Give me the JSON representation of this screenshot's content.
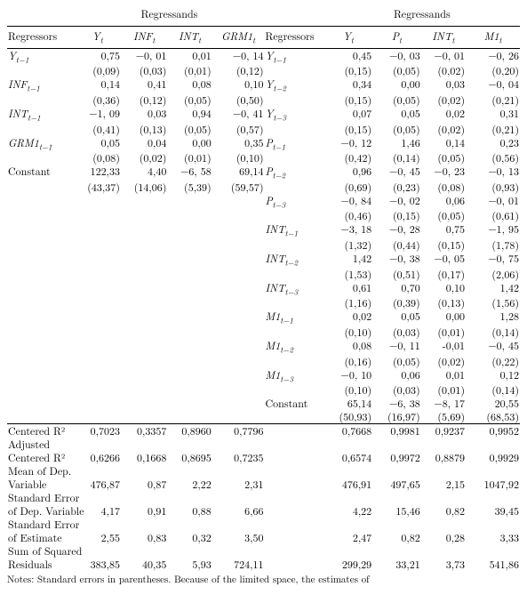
{
  "headings": {
    "regressands": "Regressands",
    "regressors": "Regressors"
  },
  "left": {
    "cols": [
      "Y",
      "INF",
      "INT",
      "GRM1"
    ],
    "cols_sub": [
      "t",
      "t",
      "t",
      "t"
    ],
    "rows": [
      {
        "label": "Y",
        "sub": "t−1",
        "vals": [
          "0,75",
          "−0, 01",
          "0,01",
          "−0, 14"
        ],
        "se": [
          "(0,09)",
          "(0,03)",
          "(0,01)",
          "(0,12)"
        ]
      },
      {
        "label": "INF",
        "sub": "t−1",
        "vals": [
          "0,14",
          "0,41",
          "0,08",
          "0,10"
        ],
        "se": [
          "(0,36)",
          "(0,12)",
          "(0,05)",
          "(0,50)"
        ]
      },
      {
        "label": "INT",
        "sub": "t−1",
        "vals": [
          "−1, 09",
          "0,03",
          "0,94",
          "−0, 41"
        ],
        "se": [
          "(0,41)",
          "(0,13)",
          "(0,05)",
          "(0,57)"
        ]
      },
      {
        "label": "GRM1",
        "sub": "t−1",
        "vals": [
          "0,05",
          "0,04",
          "0,00",
          "0,35"
        ],
        "se": [
          "(0,08)",
          "(0,02)",
          "(0,01)",
          "(0,10)"
        ]
      },
      {
        "label": "Constant",
        "sub": "",
        "vals": [
          "122,33",
          "4,40",
          "−6, 58",
          "69,14"
        ],
        "se": [
          "(43,37)",
          "(14,06)",
          "(5,39)",
          "(59,57)"
        ]
      }
    ]
  },
  "right": {
    "cols": [
      "Y",
      "P",
      "INT",
      "M1"
    ],
    "cols_sub": [
      "t",
      "t",
      "t",
      "t"
    ],
    "rows": [
      {
        "label": "Y",
        "sub": "t−1",
        "vals": [
          "0,45",
          "−0, 03",
          "−0, 01",
          "−0, 26"
        ],
        "se": [
          "(0,15)",
          "(0,05)",
          "(0,02)",
          "(0,20)"
        ]
      },
      {
        "label": "Y",
        "sub": "t−2",
        "vals": [
          "0,34",
          "0,00",
          "0,03",
          "−0, 04"
        ],
        "se": [
          "(0,15)",
          "(0,05)",
          "(0,02)",
          "(0,21)"
        ]
      },
      {
        "label": "Y",
        "sub": "t−3",
        "vals": [
          "0,07",
          "0,05",
          "0,02",
          "0,31"
        ],
        "se": [
          "(0,15)",
          "(0,05)",
          "(0,02)",
          "(0,21)"
        ]
      },
      {
        "label": "P",
        "sub": "t−1",
        "vals": [
          "−0, 12",
          "1,46",
          "0,14",
          "0,23"
        ],
        "se": [
          "(0,42)",
          "(0,14)",
          "(0,05)",
          "(0,56)"
        ]
      },
      {
        "label": "P",
        "sub": "t−2",
        "vals": [
          "0,96",
          "−0, 45",
          "−0, 23",
          "−0, 13"
        ],
        "se": [
          "(0,69)",
          "(0,23)",
          "(0,08)",
          "(0,93)"
        ]
      },
      {
        "label": "P",
        "sub": "t−3",
        "vals": [
          "−0, 84",
          "−0, 02",
          "0,06",
          "−0, 01"
        ],
        "se": [
          "(0,46)",
          "(0,15)",
          "(0,05)",
          "(0,61)"
        ]
      },
      {
        "label": "INT",
        "sub": "t−1",
        "vals": [
          "−3, 18",
          "−0, 28",
          "0,75",
          "−1, 95"
        ],
        "se": [
          "(1,32)",
          "(0,44)",
          "(0,15)",
          "(1,78)"
        ]
      },
      {
        "label": "INT",
        "sub": "t−2",
        "vals": [
          "1,42",
          "−0, 38",
          "−0, 05",
          "−0, 75"
        ],
        "se": [
          "(1,53)",
          "(0,51)",
          "(0,17)",
          "(2,06)"
        ]
      },
      {
        "label": "INT",
        "sub": "t−3",
        "vals": [
          "0,61",
          "0,70",
          "0,10",
          "1,42"
        ],
        "se": [
          "(1,16)",
          "(0,39)",
          "(0,13)",
          "(1,56)"
        ]
      },
      {
        "label": "M1",
        "sub": "t−1",
        "vals": [
          "0,02",
          "0,05",
          "0,00",
          "1,28"
        ],
        "se": [
          "(0,10)",
          "(0,03)",
          "(0,01)",
          "(0,14)"
        ]
      },
      {
        "label": "M1",
        "sub": "t−2",
        "vals": [
          "0,08",
          "−0, 11",
          "-0,01",
          "−0, 45"
        ],
        "se": [
          "(0,16)",
          "(0,05)",
          "(0,02)",
          "(0,22)"
        ]
      },
      {
        "label": "M1",
        "sub": "t−3",
        "vals": [
          "−0, 10",
          "0,06",
          "0,01",
          "0,12"
        ],
        "se": [
          "(0,10)",
          "(0,03)",
          "(0,01)",
          "(0,14)"
        ]
      },
      {
        "label": "Constant",
        "sub": "",
        "vals": [
          "65,14",
          "−6, 38",
          "−8, 17",
          "20,55"
        ],
        "se": [
          "(50,93)",
          "(16,97)",
          "(5,69)",
          "(68,53)"
        ]
      }
    ]
  },
  "stats": [
    {
      "label_lines": [
        "Centered R²"
      ],
      "left": [
        "0,7023",
        "0,3357",
        "0,8960",
        "0,7796"
      ],
      "right": [
        "0,7668",
        "0,9981",
        "0,9237",
        "0,9952"
      ],
      "rule": true
    },
    {
      "label_lines": [
        "Adjusted",
        "Centered R²"
      ],
      "left": [
        "0,6266",
        "0,1668",
        "0,8695",
        "0,7235"
      ],
      "right": [
        "0,6574",
        "0,9972",
        "0,8879",
        "0,9929"
      ]
    },
    {
      "label_lines": [
        "Mean of Dep.",
        "Variable"
      ],
      "left": [
        "476,87",
        "0,87",
        "2,22",
        "2,31"
      ],
      "right": [
        "476,91",
        "497,65",
        "2,15",
        "1047,92"
      ]
    },
    {
      "label_lines": [
        "Standard Error",
        "of Dep. Variable"
      ],
      "left": [
        "4,17",
        "0,91",
        "0,88",
        "6,66"
      ],
      "right": [
        "4,22",
        "15,46",
        "0,82",
        "39,45"
      ]
    },
    {
      "label_lines": [
        "Standard Error",
        "of Estimate"
      ],
      "left": [
        "2,55",
        "0,83",
        "0,32",
        "3,50"
      ],
      "right": [
        "2,47",
        "0,82",
        "0,28",
        "3,33"
      ]
    },
    {
      "label_lines": [
        "Sum of Squared",
        "Residuals"
      ],
      "left": [
        "383,85",
        "40,35",
        "5,93",
        "724,11"
      ],
      "right": [
        "299,29",
        "33,21",
        "3,73",
        "541,86"
      ]
    }
  ],
  "note_visible_fragment": "Notes: Standard errors in parentheses. Because of the limited space, the estimates of"
}
